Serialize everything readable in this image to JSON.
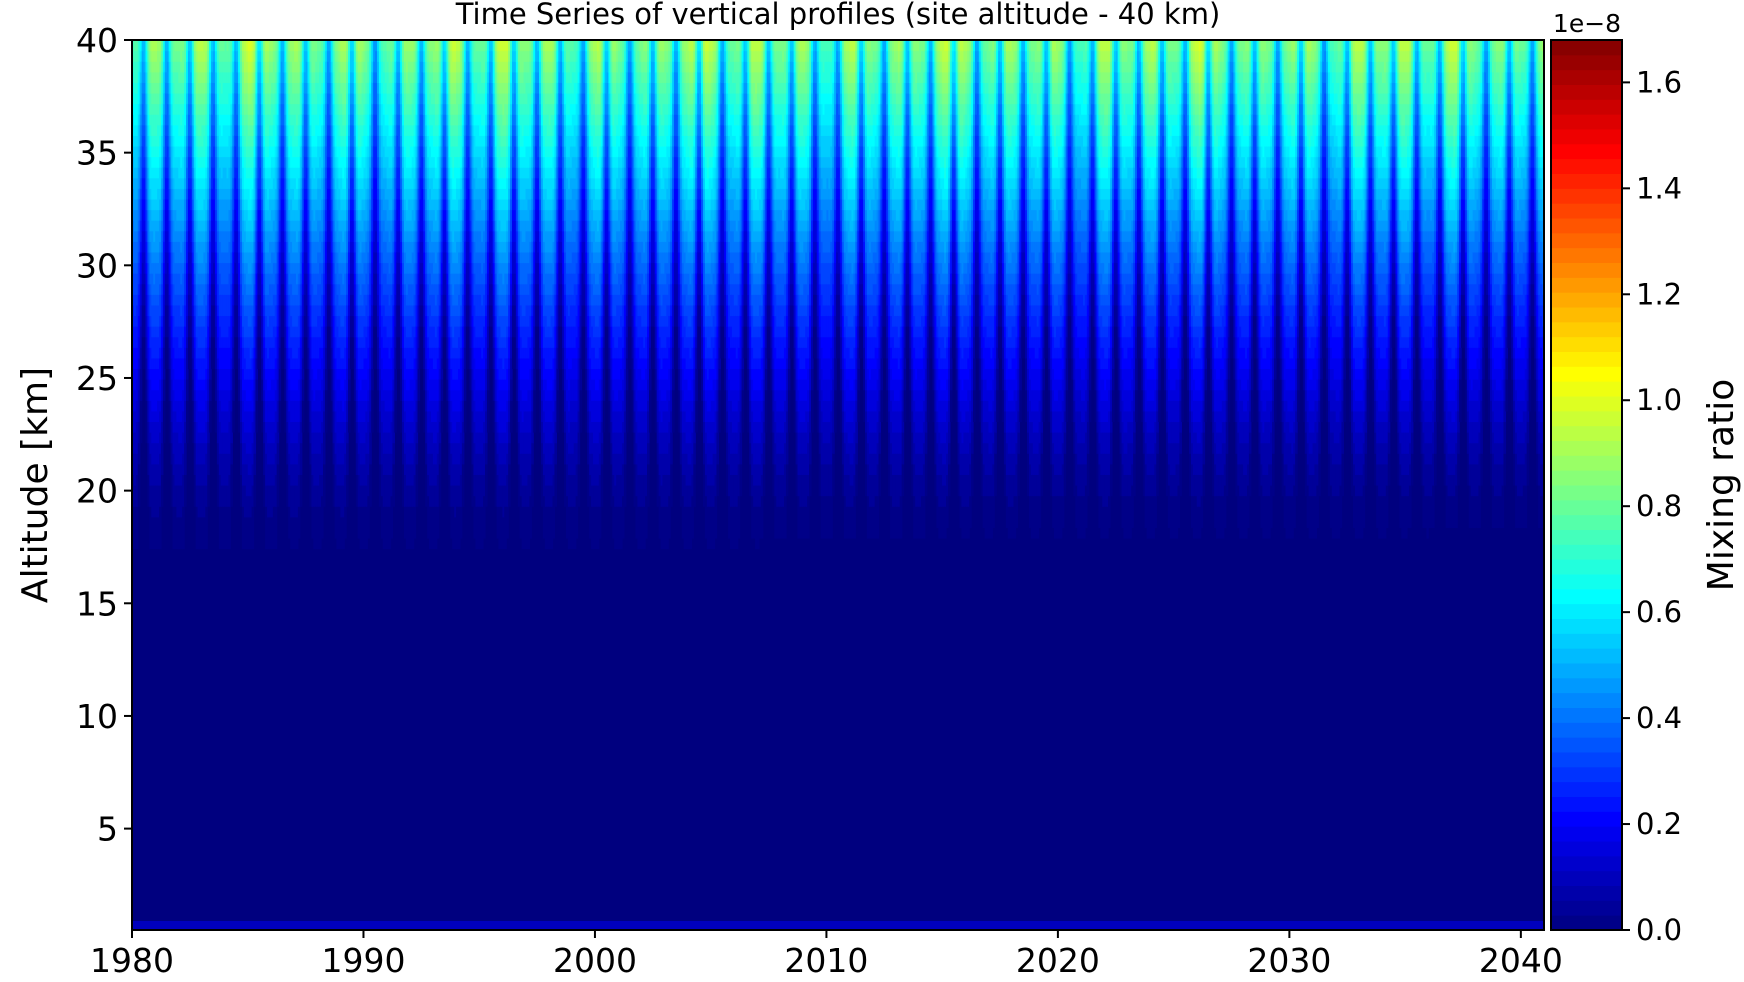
{
  "chart_data": {
    "type": "heatmap",
    "subtype": "filled-contour",
    "title": "Time Series of vertical profiles (site altitude - 40 km)",
    "ylabel": "Altitude [km]",
    "xlabel": "",
    "xlim": [
      1980,
      2041
    ],
    "ylim": [
      0.5,
      40
    ],
    "x_ticks": [
      1980,
      1990,
      2000,
      2010,
      2020,
      2030,
      2040
    ],
    "x_tick_labels": [
      "1980",
      "1990",
      "2000",
      "2010",
      "2020",
      "2030",
      "2040"
    ],
    "y_ticks": [
      5,
      10,
      15,
      20,
      25,
      30,
      35,
      40
    ],
    "y_tick_labels": [
      "5",
      "10",
      "15",
      "20",
      "25",
      "30",
      "35",
      "40"
    ],
    "colormap": "jet",
    "z_description": "seasonal cycle, one cycle per year; near zero below ~17 km, rising to ~0.8e-8 near 40 km",
    "colorbar": {
      "label": "Mixing ratio",
      "offset_text": "1e−8",
      "range": [
        0,
        1.68
      ],
      "ticks": [
        0.0,
        0.2,
        0.4,
        0.6,
        0.8,
        1.0,
        1.2,
        1.4,
        1.6
      ],
      "tick_labels": [
        "0.0",
        "0.2",
        "0.4",
        "0.6",
        "0.8",
        "1.0",
        "1.2",
        "1.4",
        "1.6"
      ],
      "levels": 60
    },
    "grid": false,
    "legend": "none"
  }
}
